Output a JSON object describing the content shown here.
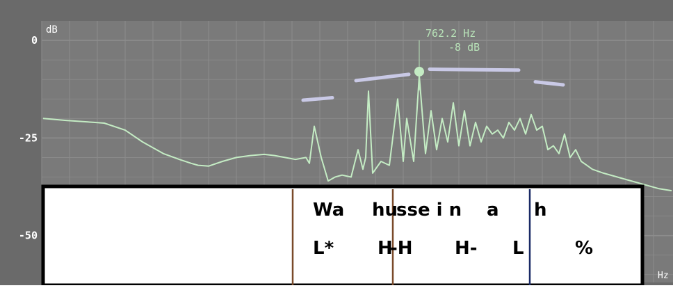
{
  "chart_data": {
    "type": "line",
    "ylabel": "dB",
    "xunit": "Hz",
    "y_ticks": [
      "0",
      "-25",
      "-50"
    ],
    "ylim": [
      -62,
      5
    ],
    "grid": true,
    "cursor": {
      "freq_label": "762.2 Hz",
      "level_label": "-8 dB",
      "level": -8
    },
    "spectrum_db": [
      -20,
      -20.5,
      -21,
      -21.2,
      -23,
      -26,
      -29,
      -30.5,
      -31.5,
      -32,
      -32.2,
      -31,
      -30,
      -29.5,
      -29.2,
      -29.5,
      -30,
      -30.5,
      -30,
      -31.5,
      -22,
      -30,
      -36,
      -35,
      -34.5,
      -35,
      -28,
      -33,
      -30,
      -13,
      -34,
      -31,
      -32,
      -15,
      -31,
      -20,
      -31,
      -9,
      -29,
      -18,
      -28,
      -20,
      -26,
      -16,
      -27,
      -18,
      -27,
      -21,
      -26,
      -22,
      -24,
      -23,
      -25,
      -21,
      -23,
      -20,
      -24,
      -19,
      -23,
      -22,
      -28,
      -27,
      -29,
      -24,
      -30,
      -28,
      -31,
      -32,
      -33,
      -34,
      -35,
      -36,
      -37,
      -38,
      -38.5
    ],
    "pitch_marks": [
      -15,
      -9.5,
      -7.5,
      -11
    ],
    "annotation_tiers": [
      {
        "name": "words",
        "labels": [
          "Wa",
          "hu",
          "sse i n",
          "a",
          "h"
        ]
      },
      {
        "name": "tones",
        "labels": [
          "L*",
          "H",
          "-H",
          "H-",
          "L",
          "%"
        ]
      }
    ]
  },
  "colors": {
    "background": "#7a7a7a",
    "grid": "#8c8c8c",
    "trace": "#c4ecc4",
    "pitch_mark": "#c9c9e6",
    "cursor_text": "#b8e2b8",
    "label_text": "#ffffff",
    "boundary_brown": "#7a4a2a",
    "boundary_navy": "#1a2a66"
  }
}
